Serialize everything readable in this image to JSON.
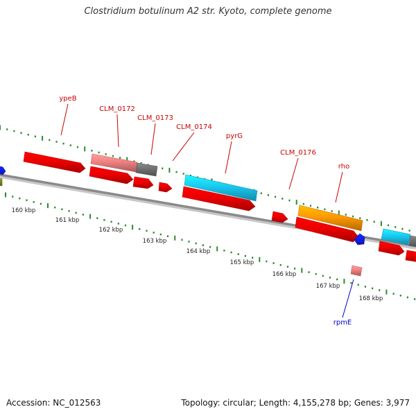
{
  "title": "Clostridium botulinum A2 str. Kyoto, complete genome",
  "footer": {
    "accession": "Accession: NC_012563",
    "summary": "Topology: circular; Length: 4,155,278 bp; Genes: 3,977"
  },
  "colors": {
    "cds_red": "#ee0000",
    "cds_pink": "#f08080",
    "cds_gray": "#707070",
    "cds_cyan": "#19c8f0",
    "cds_orange": "#ff9900",
    "cds_blue": "#1020ee",
    "cds_olive": "#778822",
    "label_red": "#cc0000",
    "label_blue": "#0000cc",
    "tick_green": "#2a8a2a",
    "backbone": "#808080"
  },
  "scale_labels": [
    "160 kbp",
    "161 kbp",
    "162 kbp",
    "163 kbp",
    "164 kbp",
    "165 kbp",
    "166 kbp",
    "167 kbp",
    "168 kbp"
  ],
  "gene_labels": [
    {
      "id": "ypeB",
      "text": "ypeB",
      "color_key": "label_red"
    },
    {
      "id": "CLM_0172",
      "text": "CLM_0172",
      "color_key": "label_red"
    },
    {
      "id": "CLM_0173",
      "text": "CLM_0173",
      "color_key": "label_red"
    },
    {
      "id": "CLM_0174",
      "text": "CLM_0174",
      "color_key": "label_red"
    },
    {
      "id": "pyrG",
      "text": "pyrG",
      "color_key": "label_red"
    },
    {
      "id": "CLM_0176",
      "text": "CLM_0176",
      "color_key": "label_red"
    },
    {
      "id": "rho",
      "text": "rho",
      "color_key": "label_red"
    },
    {
      "id": "rpmE",
      "text": "rpmE",
      "color_key": "label_blue"
    }
  ]
}
